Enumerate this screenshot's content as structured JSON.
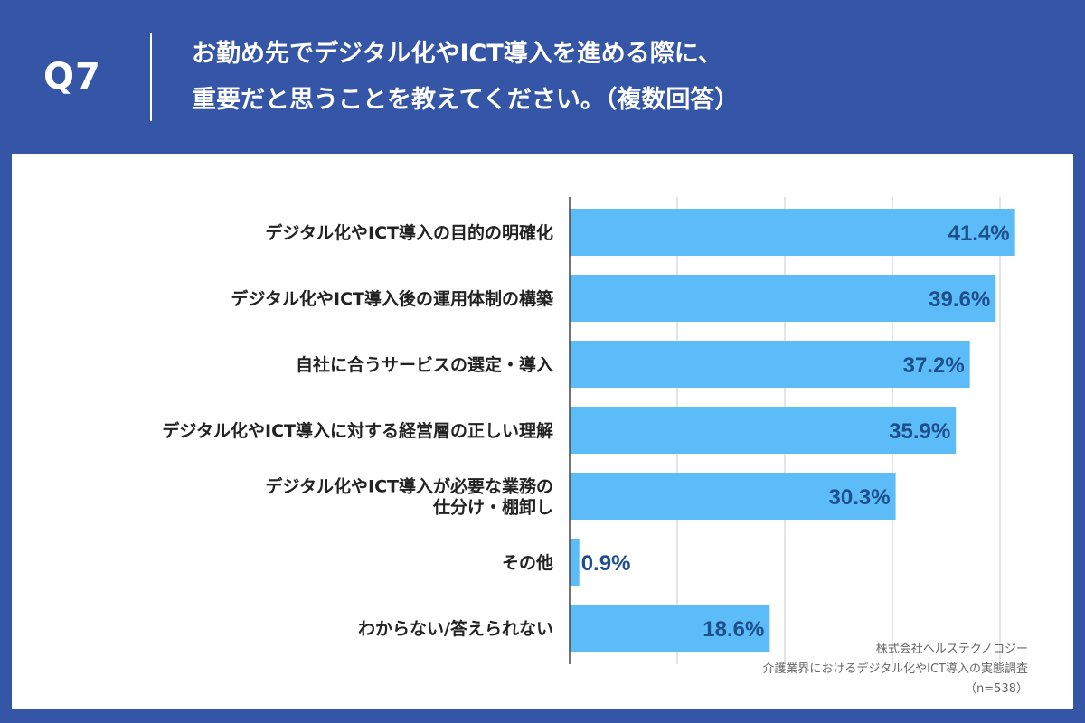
{
  "header": {
    "question_number": "Q7",
    "title_line1": "お勤め先でデジタル化やICT導入を進める際に、",
    "title_line2": "重要だと思うことを教えてください。（複数回答）"
  },
  "source": {
    "company": "株式会社ヘルステクノロジー",
    "survey": "介護業界におけるデジタル化やICT導入の実態調査",
    "sample": "（n=538）"
  },
  "colors": {
    "frame": "#3556a6",
    "bar": "#5bbcf8",
    "value_text": "#1f4e8c",
    "grid": "#c8c8c8"
  },
  "chart_data": {
    "type": "bar",
    "orientation": "horizontal",
    "categories": [
      [
        "デジタル化やICT導入の目的の明確化"
      ],
      [
        "デジタル化やICT導入後の運用体制の構築"
      ],
      [
        "自社に合うサービスの選定・導入"
      ],
      [
        "デジタル化やICT導入に対する経営層の正しい理解"
      ],
      [
        "デジタル化やICT導入が必要な業務の",
        "仕分け・棚卸し"
      ],
      [
        "その他"
      ],
      [
        "わからない/答えられない"
      ]
    ],
    "values": [
      41.4,
      39.6,
      37.2,
      35.9,
      30.3,
      0.9,
      18.6
    ],
    "value_labels": [
      "41.4%",
      "39.6%",
      "37.2%",
      "35.9%",
      "30.3%",
      "0.9%",
      "18.6%"
    ],
    "xlim": [
      0,
      50
    ],
    "grid": true,
    "legend": "none"
  }
}
